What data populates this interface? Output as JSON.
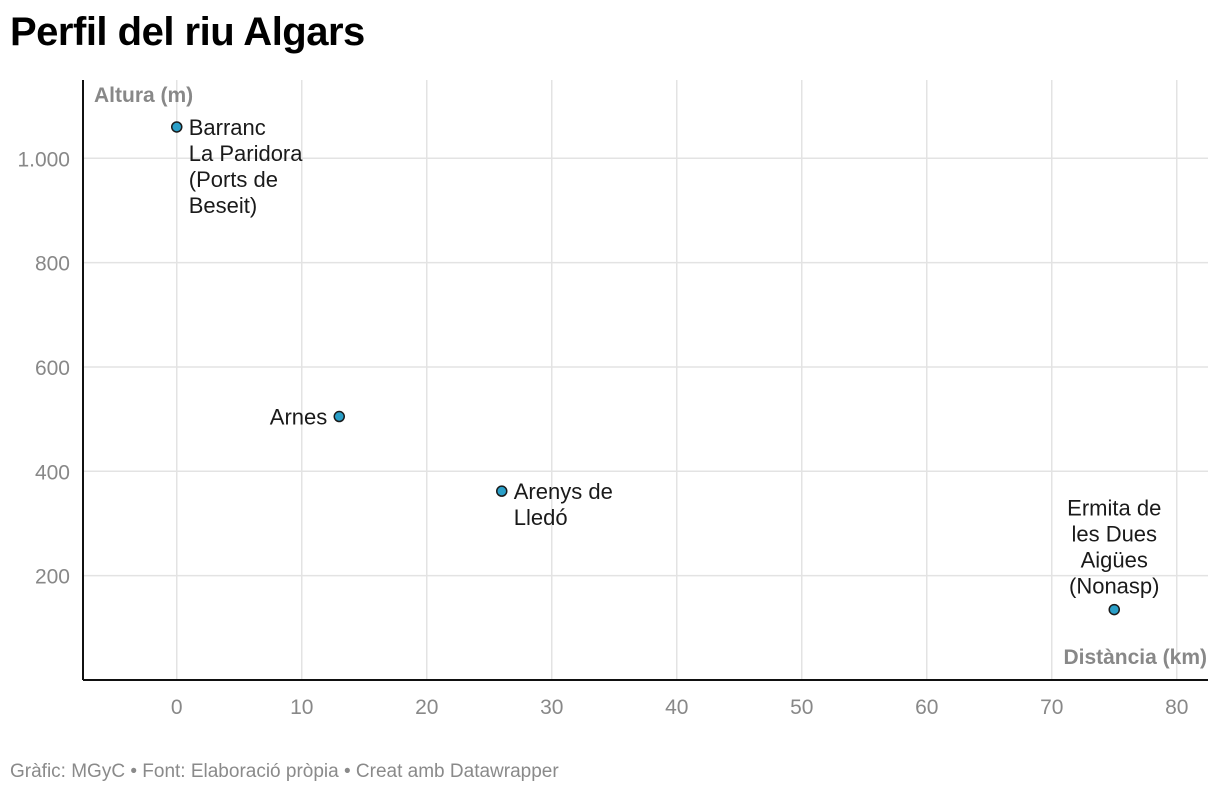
{
  "footer": {
    "text": "Gràfic: MGyC • Font: Elaboració pròpia • Creat amb Datawrapper"
  },
  "chart_data": {
    "type": "scatter",
    "title": "Perfil del riu Algars",
    "xlabel": "Distància (km)",
    "ylabel": "Altura (m)",
    "xlim": [
      -7.5,
      82.5
    ],
    "ylim": [
      0,
      1150
    ],
    "grid": true,
    "x_ticks": [
      0,
      10,
      20,
      30,
      40,
      50,
      60,
      70,
      80
    ],
    "x_tick_labels": [
      "0",
      "10",
      "20",
      "30",
      "40",
      "50",
      "60",
      "70",
      "80"
    ],
    "y_ticks": [
      200,
      400,
      600,
      800,
      1000
    ],
    "y_tick_labels": [
      "200",
      "400",
      "600",
      "800",
      "1.000"
    ],
    "marker_color": "#2a9fc8",
    "marker_stroke": "#1a1a1a",
    "points": [
      {
        "x": 0,
        "y": 1060,
        "label": [
          "Barranc",
          "La Paridora",
          "(Ports de",
          "Beseit)"
        ],
        "label_pos": "right-below"
      },
      {
        "x": 13,
        "y": 505,
        "label": [
          "Arnes"
        ],
        "label_pos": "left"
      },
      {
        "x": 26,
        "y": 362,
        "label": [
          "Arenys de",
          "Lledó"
        ],
        "label_pos": "right-below"
      },
      {
        "x": 75,
        "y": 135,
        "label": [
          "Ermita de",
          "les Dues",
          "Aigües",
          "(Nonasp)"
        ],
        "label_pos": "above"
      }
    ]
  }
}
